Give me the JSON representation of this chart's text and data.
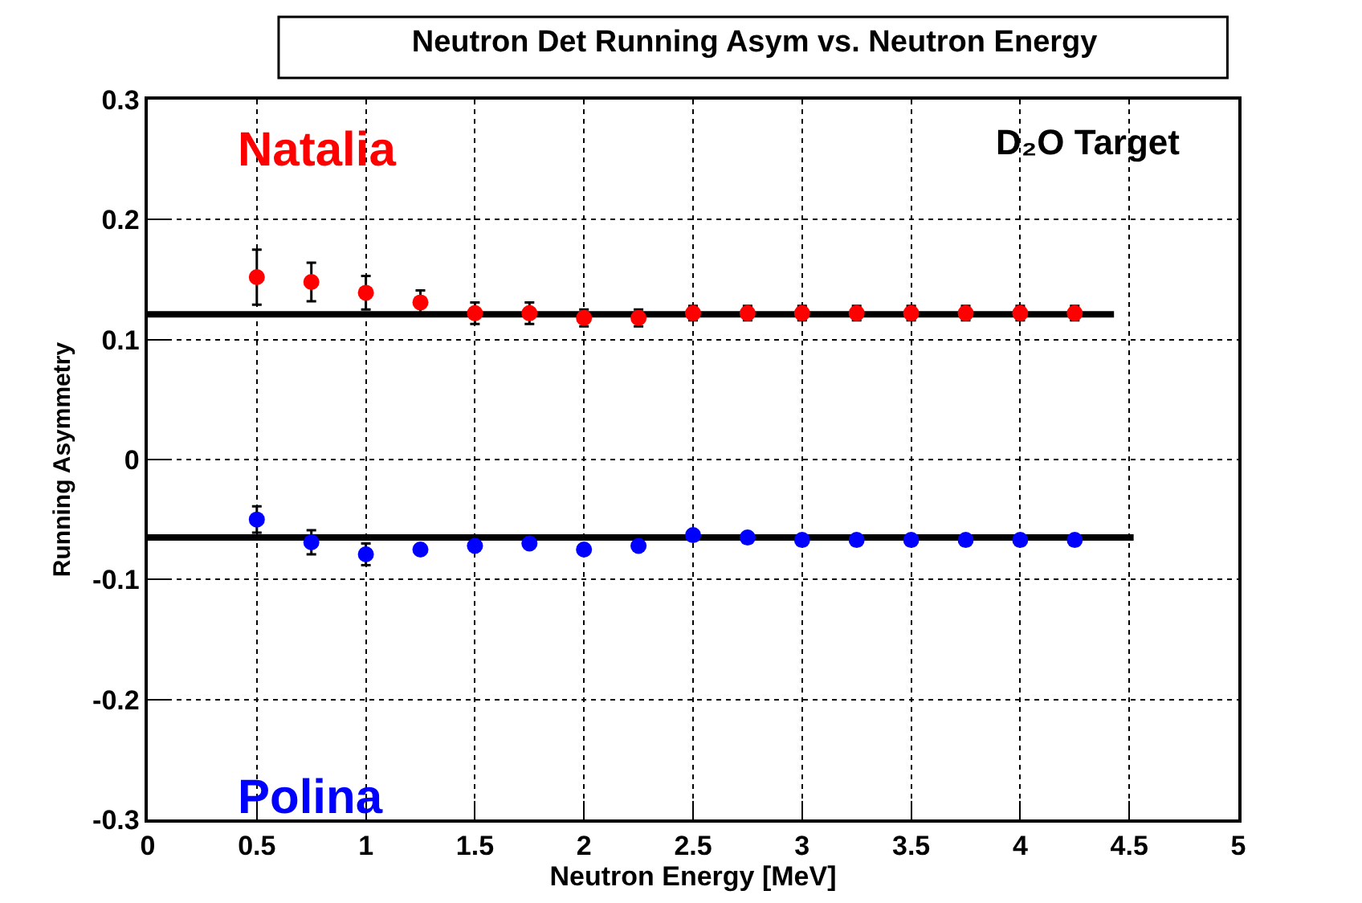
{
  "chart_data": {
    "type": "scatter",
    "title": "Neutron Det Running Asym vs. Neutron Energy",
    "xlabel": "Neutron Energy [MeV]",
    "ylabel": "Running Asymmetry",
    "annotations": [
      "D₂O Target"
    ],
    "x": [
      0.5,
      0.75,
      1.0,
      1.25,
      1.5,
      1.75,
      2.0,
      2.25,
      2.5,
      2.75,
      3.0,
      3.25,
      3.5,
      3.75,
      4.0,
      4.25
    ],
    "series": [
      {
        "name": "Natalia",
        "color": "#ff0000",
        "values": [
          0.152,
          0.148,
          0.139,
          0.131,
          0.122,
          0.122,
          0.118,
          0.118,
          0.122,
          0.122,
          0.122,
          0.122,
          0.122,
          0.122,
          0.122,
          0.122
        ],
        "errors": [
          0.023,
          0.016,
          0.014,
          0.01,
          0.009,
          0.009,
          0.007,
          0.007,
          0.006,
          0.006,
          0.006,
          0.006,
          0.006,
          0.006,
          0.006,
          0.006
        ]
      },
      {
        "name": "Polina",
        "color": "#0000ff",
        "values": [
          -0.05,
          -0.069,
          -0.079,
          -0.075,
          -0.072,
          -0.07,
          -0.075,
          -0.072,
          -0.063,
          -0.065,
          -0.067,
          -0.067,
          -0.067,
          -0.067,
          -0.067,
          -0.067
        ],
        "errors": [
          0.011,
          0.01,
          0.009,
          null,
          null,
          null,
          null,
          null,
          null,
          null,
          null,
          null,
          null,
          null,
          null,
          null
        ]
      },
      {
        "type": "line",
        "color": "#000000",
        "marker": "none",
        "x": [
          0,
          4.43
        ],
        "values": [
          0.121,
          0.121
        ]
      },
      {
        "type": "line",
        "color": "#000000",
        "marker": "none",
        "x": [
          0,
          4.52
        ],
        "values": [
          -0.065,
          -0.065
        ]
      }
    ],
    "xlim": [
      0,
      5
    ],
    "xticks": [
      0,
      0.5,
      1,
      1.5,
      2,
      2.5,
      3,
      3.5,
      4,
      4.5,
      5
    ],
    "ylim": [
      -0.3,
      0.3
    ],
    "yticks": [
      -0.3,
      -0.2,
      -0.1,
      0,
      0.1,
      0.2,
      0.3
    ],
    "grid": true,
    "marker": "circle"
  }
}
